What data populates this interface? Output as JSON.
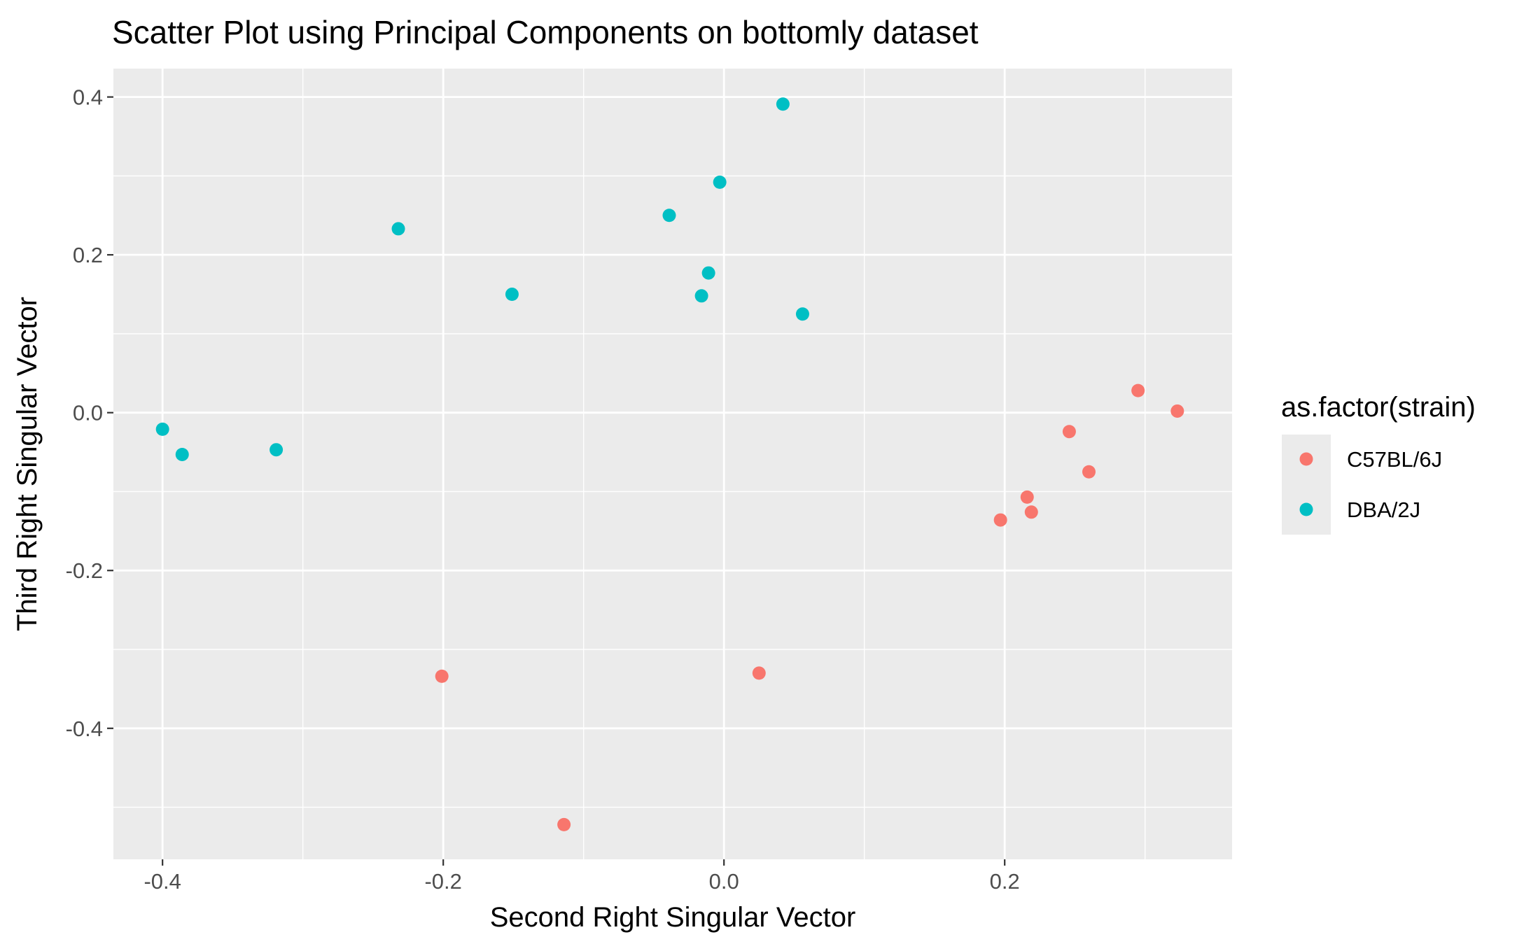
{
  "chart_data": {
    "type": "scatter",
    "title": "Scatter Plot using Principal Components on bottomly dataset",
    "xlabel": "Second Right Singular Vector",
    "ylabel": "Third Right Singular Vector",
    "xlim": [
      -0.435,
      0.362
    ],
    "ylim": [
      -0.566,
      0.436
    ],
    "x_ticks": [
      -0.4,
      -0.2,
      0.0,
      0.2
    ],
    "x_tick_labels": [
      "-0.4",
      "-0.2",
      "0.0",
      "0.2"
    ],
    "y_ticks": [
      0.4,
      0.2,
      0.0,
      -0.2,
      -0.4
    ],
    "y_tick_labels": [
      "0.4",
      "0.2",
      "0.0",
      "-0.2",
      "-0.4"
    ],
    "grid": true,
    "legend": {
      "title": "as.factor(strain)",
      "position": "right"
    },
    "series": [
      {
        "name": "C57BL/6J",
        "color": "#F8766D",
        "points": [
          {
            "x": 0.295,
            "y": 0.028
          },
          {
            "x": 0.323,
            "y": 0.002
          },
          {
            "x": 0.246,
            "y": -0.024
          },
          {
            "x": 0.26,
            "y": -0.075
          },
          {
            "x": 0.216,
            "y": -0.107
          },
          {
            "x": 0.219,
            "y": -0.126
          },
          {
            "x": 0.197,
            "y": -0.136
          },
          {
            "x": -0.201,
            "y": -0.334
          },
          {
            "x": 0.025,
            "y": -0.33
          },
          {
            "x": -0.114,
            "y": -0.522
          }
        ]
      },
      {
        "name": "DBA/2J",
        "color": "#00BFC4",
        "points": [
          {
            "x": 0.042,
            "y": 0.391
          },
          {
            "x": -0.003,
            "y": 0.292
          },
          {
            "x": -0.039,
            "y": 0.25
          },
          {
            "x": -0.232,
            "y": 0.233
          },
          {
            "x": -0.011,
            "y": 0.177
          },
          {
            "x": -0.151,
            "y": 0.15
          },
          {
            "x": -0.016,
            "y": 0.148
          },
          {
            "x": 0.056,
            "y": 0.125
          },
          {
            "x": -0.4,
            "y": -0.021
          },
          {
            "x": -0.386,
            "y": -0.053
          },
          {
            "x": -0.319,
            "y": -0.047
          }
        ]
      }
    ]
  }
}
